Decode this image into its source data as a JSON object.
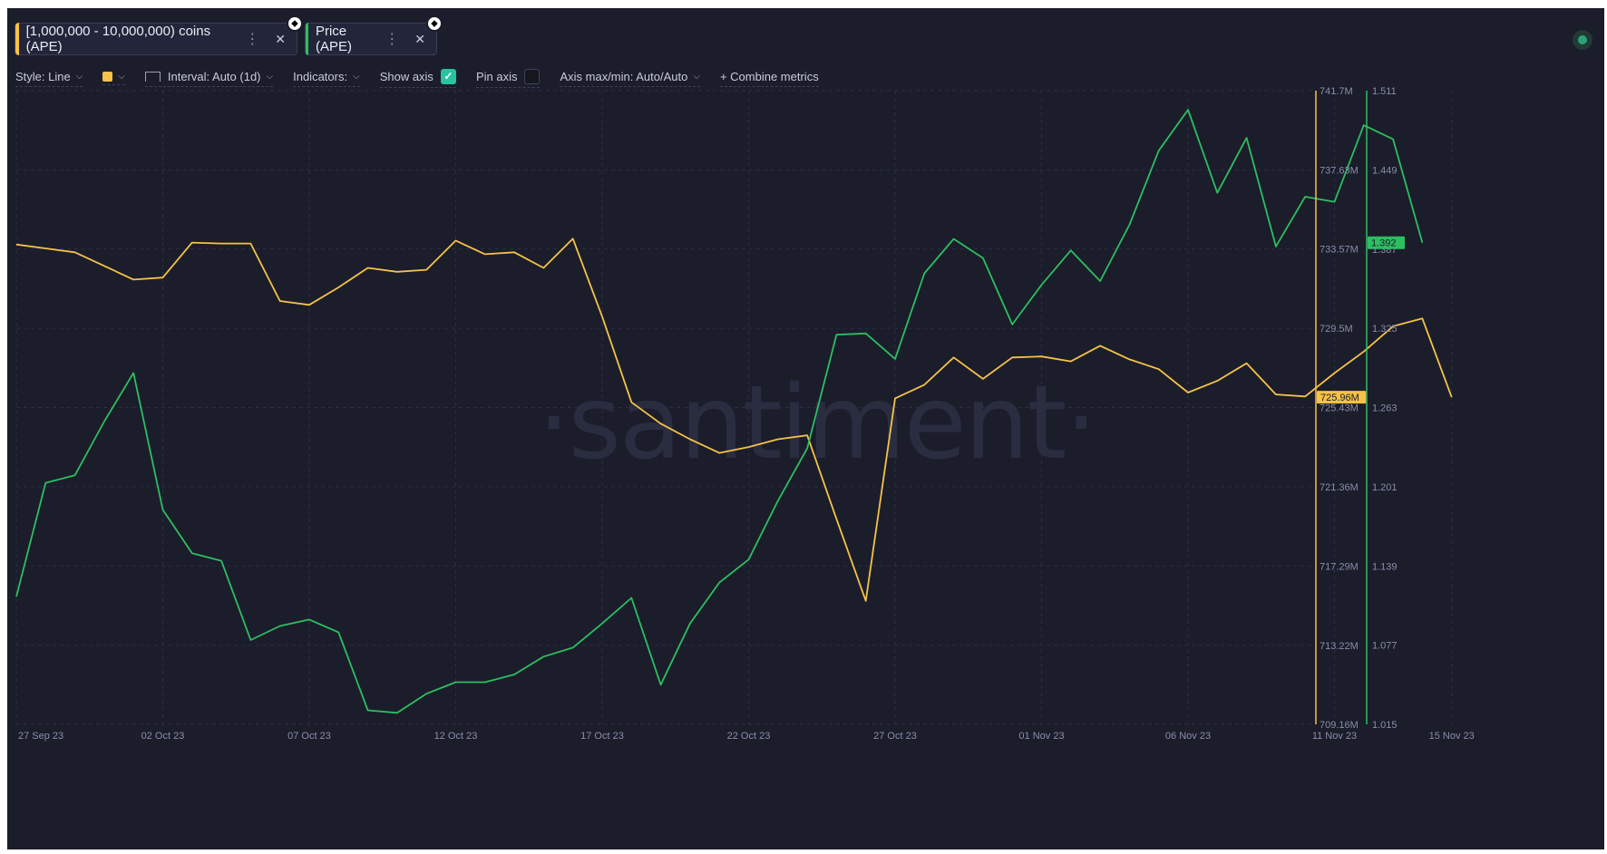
{
  "metrics": [
    {
      "label": "[1,000,000 - 10,000,000) coins (APE)",
      "color": "#f6c247"
    },
    {
      "label": "Price (APE)",
      "color": "#2dbe60"
    }
  ],
  "eth_badge_glyph": "⬥",
  "toolbar": {
    "style_label": "Style: Line",
    "interval_label": "Interval: Auto (1d)",
    "indicators_label": "Indicators:",
    "show_axis_label": "Show axis",
    "pin_axis_label": "Pin axis",
    "axis_label": "Axis max/min: Auto/Auto",
    "combine_label": "+ Combine metrics",
    "show_axis_checked": true,
    "pin_axis_checked": false
  },
  "watermark": "·santiment·",
  "chart_data": {
    "type": "line",
    "x_tick_labels": [
      "27 Sep 23",
      "02 Oct 23",
      "07 Oct 23",
      "12 Oct 23",
      "17 Oct 23",
      "22 Oct 23",
      "27 Oct 23",
      "01 Nov 23",
      "06 Nov 23",
      "11 Nov 23",
      "15 Nov 23"
    ],
    "x_tick_dayindex": [
      0,
      5,
      10,
      15,
      20,
      25,
      30,
      35,
      40,
      45,
      49
    ],
    "left_axis": {
      "ticks": [
        "741.7M",
        "737.63M",
        "733.57M",
        "729.5M",
        "725.43M",
        "721.36M",
        "717.29M",
        "713.22M",
        "709.16M"
      ],
      "tick_values": [
        741.7,
        737.63,
        733.57,
        729.5,
        725.43,
        721.36,
        717.29,
        713.22,
        709.16
      ],
      "range": [
        709.16,
        741.7
      ],
      "current_label": "725.96M",
      "color": "#f6c247"
    },
    "right_axis": {
      "ticks": [
        "1.511",
        "1.449",
        "1.387",
        "1.325",
        "1.263",
        "1.201",
        "1.139",
        "1.077",
        "1.015"
      ],
      "tick_values": [
        1.511,
        1.449,
        1.387,
        1.325,
        1.263,
        1.201,
        1.139,
        1.077,
        1.015
      ],
      "range": [
        1.015,
        1.511
      ],
      "current_label": "1.392",
      "color": "#2dbe60"
    },
    "series": [
      {
        "name": "[1,000,000 - 10,000,000) coins (APE)",
        "axis": "left",
        "color": "#f6c247",
        "x": [
          0,
          1,
          2,
          3,
          4,
          5,
          6,
          7,
          8,
          9,
          10,
          11,
          12,
          13,
          14,
          15,
          16,
          17,
          18,
          19,
          20,
          21,
          22,
          23,
          24,
          25,
          26,
          27,
          28,
          29,
          30,
          31,
          32,
          33,
          34,
          35,
          36,
          37,
          38,
          39,
          40,
          41,
          42,
          43,
          44,
          45,
          46,
          47,
          48,
          49
        ],
        "values": [
          733.8,
          733.6,
          733.4,
          732.7,
          732.0,
          732.1,
          733.9,
          733.85,
          733.85,
          730.9,
          730.7,
          731.6,
          732.6,
          732.4,
          732.5,
          734.0,
          733.3,
          733.4,
          732.6,
          734.1,
          730.1,
          725.7,
          724.6,
          723.8,
          723.1,
          723.4,
          723.8,
          724.0,
          719.7,
          715.5,
          725.9,
          726.6,
          728.0,
          726.9,
          728.0,
          728.05,
          727.8,
          728.6,
          727.9,
          727.4,
          726.2,
          726.8,
          727.7,
          726.1,
          726.0,
          727.2,
          728.3,
          729.6,
          730.0,
          725.96
        ]
      },
      {
        "name": "Price (APE)",
        "axis": "right",
        "color": "#2dbe60",
        "x": [
          0,
          1,
          2,
          3,
          4,
          5,
          6,
          7,
          8,
          9,
          10,
          11,
          12,
          13,
          14,
          15,
          16,
          17,
          18,
          19,
          20,
          21,
          22,
          23,
          24,
          25,
          26,
          27,
          28,
          29,
          30,
          31,
          32,
          33,
          34,
          35,
          36,
          37,
          38,
          39,
          40,
          41,
          42,
          43,
          44,
          45,
          46,
          47,
          48
        ],
        "values": [
          1.115,
          1.204,
          1.21,
          1.252,
          1.29,
          1.183,
          1.149,
          1.143,
          1.081,
          1.092,
          1.097,
          1.087,
          1.026,
          1.024,
          1.039,
          1.048,
          1.048,
          1.054,
          1.068,
          1.075,
          1.094,
          1.114,
          1.046,
          1.094,
          1.126,
          1.144,
          1.19,
          1.231,
          1.32,
          1.321,
          1.301,
          1.368,
          1.395,
          1.38,
          1.328,
          1.359,
          1.386,
          1.362,
          1.406,
          1.464,
          1.496,
          1.431,
          1.474,
          1.389,
          1.428,
          1.424,
          1.484,
          1.473,
          1.392
        ]
      }
    ],
    "grid": true,
    "legend": "top-left"
  }
}
